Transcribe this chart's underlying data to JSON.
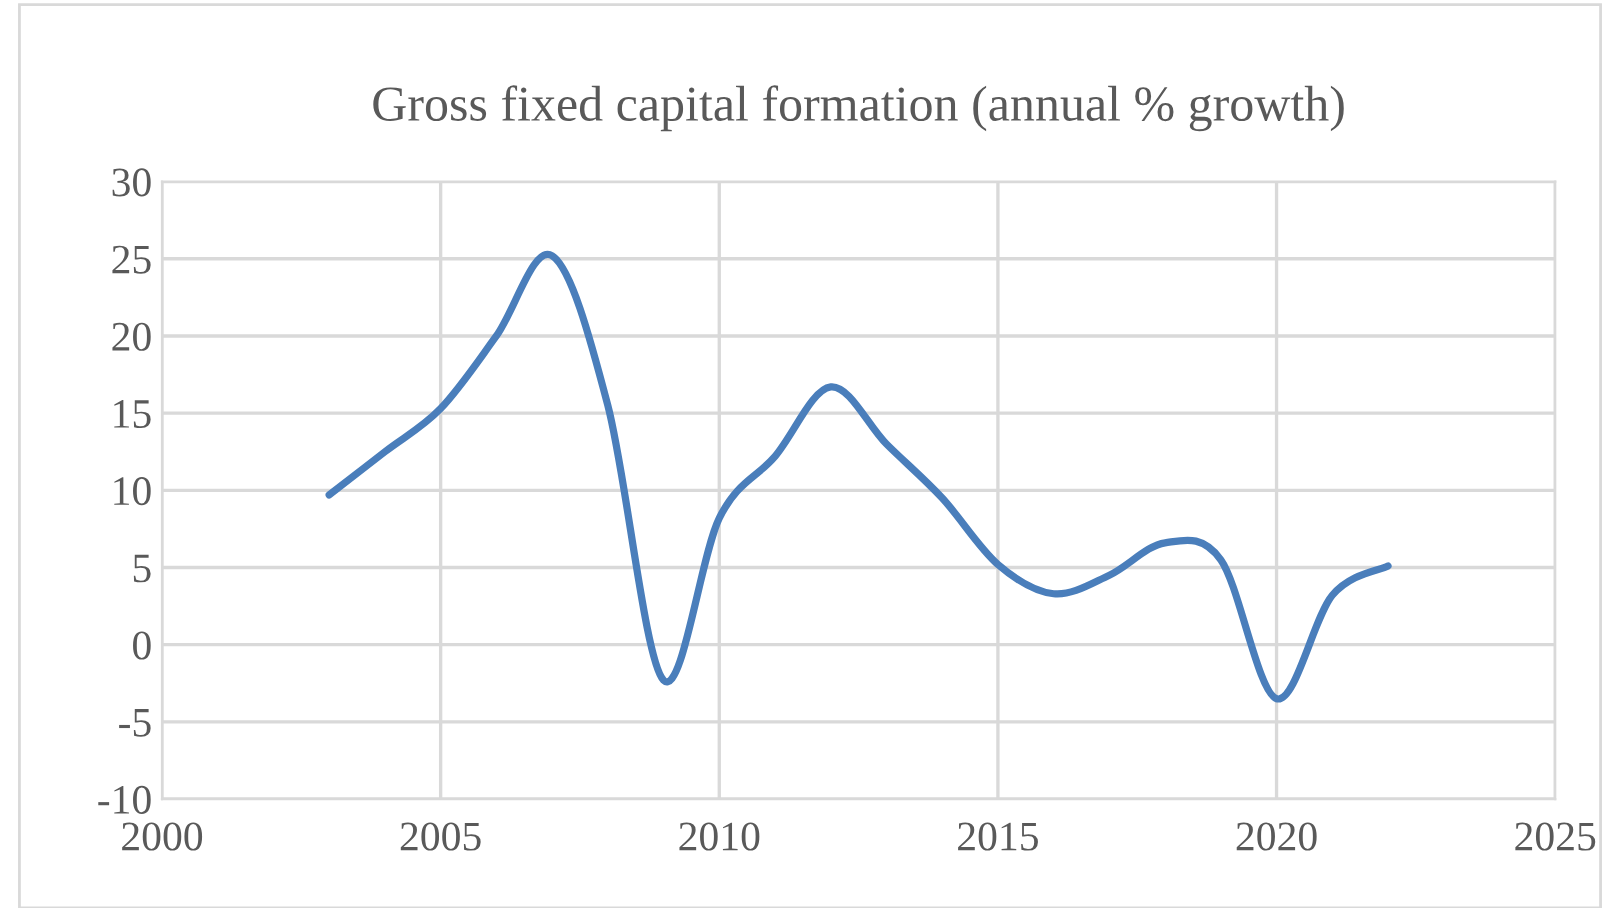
{
  "chart_data": {
    "type": "line",
    "title": "Gross fixed capital formation (annual % growth)",
    "x": [
      2003,
      2004,
      2005,
      2006,
      2007,
      2008,
      2009,
      2010,
      2011,
      2012,
      2013,
      2014,
      2015,
      2016,
      2017,
      2018,
      2019,
      2020,
      2021,
      2022
    ],
    "series": [
      {
        "color": "#4a7ebb",
        "values": [
          9.7,
          12.5,
          15.3,
          20,
          25.2,
          15.5,
          -2.3,
          8.2,
          12.2,
          16.7,
          13,
          9.5,
          5.2,
          3.3,
          4.5,
          6.6,
          5.5,
          -3.5,
          3.2,
          5.1
        ]
      }
    ],
    "xlim": [
      2000,
      2025
    ],
    "xticks": [
      2000,
      2005,
      2010,
      2015,
      2020,
      2025
    ],
    "ylim": [
      -10,
      30
    ],
    "yticks": [
      -10,
      -5,
      0,
      5,
      10,
      15,
      20,
      25,
      30
    ],
    "grid": true,
    "marker": "none",
    "line_style": "solid"
  }
}
